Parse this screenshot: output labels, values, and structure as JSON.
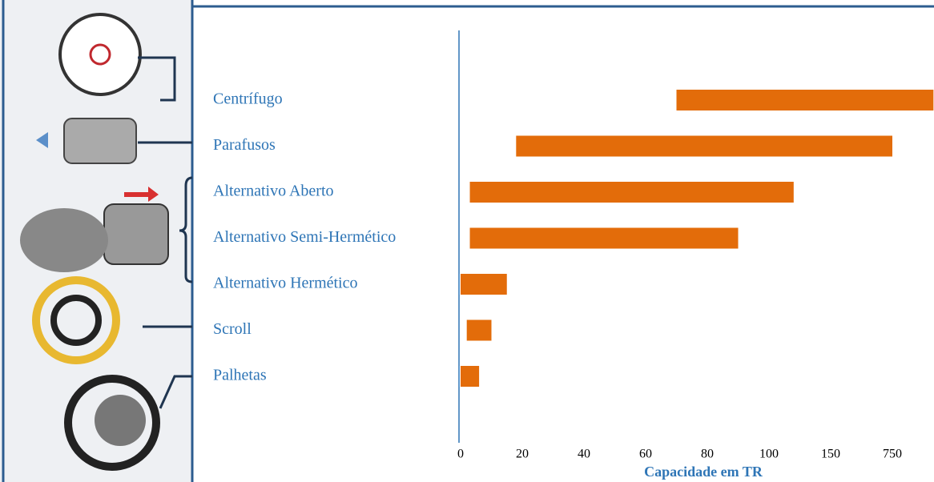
{
  "chart_data": {
    "type": "range_bar",
    "categories": [
      "Centrífugo",
      "Parafusos",
      "Alternativo Aberto",
      "Alternativo Semi-Hermético",
      "Alternativo Hermético",
      "Scroll",
      "Palhetas"
    ],
    "values": [
      [
        70,
        1150
      ],
      [
        18,
        750
      ],
      [
        3,
        120
      ],
      [
        3,
        90
      ],
      [
        0,
        15
      ],
      [
        2,
        10
      ],
      [
        0,
        6
      ]
    ],
    "color": "#e36c0a",
    "xlim": [
      0,
      1150
    ],
    "xticks": [
      0,
      20,
      40,
      60,
      80,
      100,
      150,
      750
    ],
    "xlabel": "Capacidade em TR"
  }
}
